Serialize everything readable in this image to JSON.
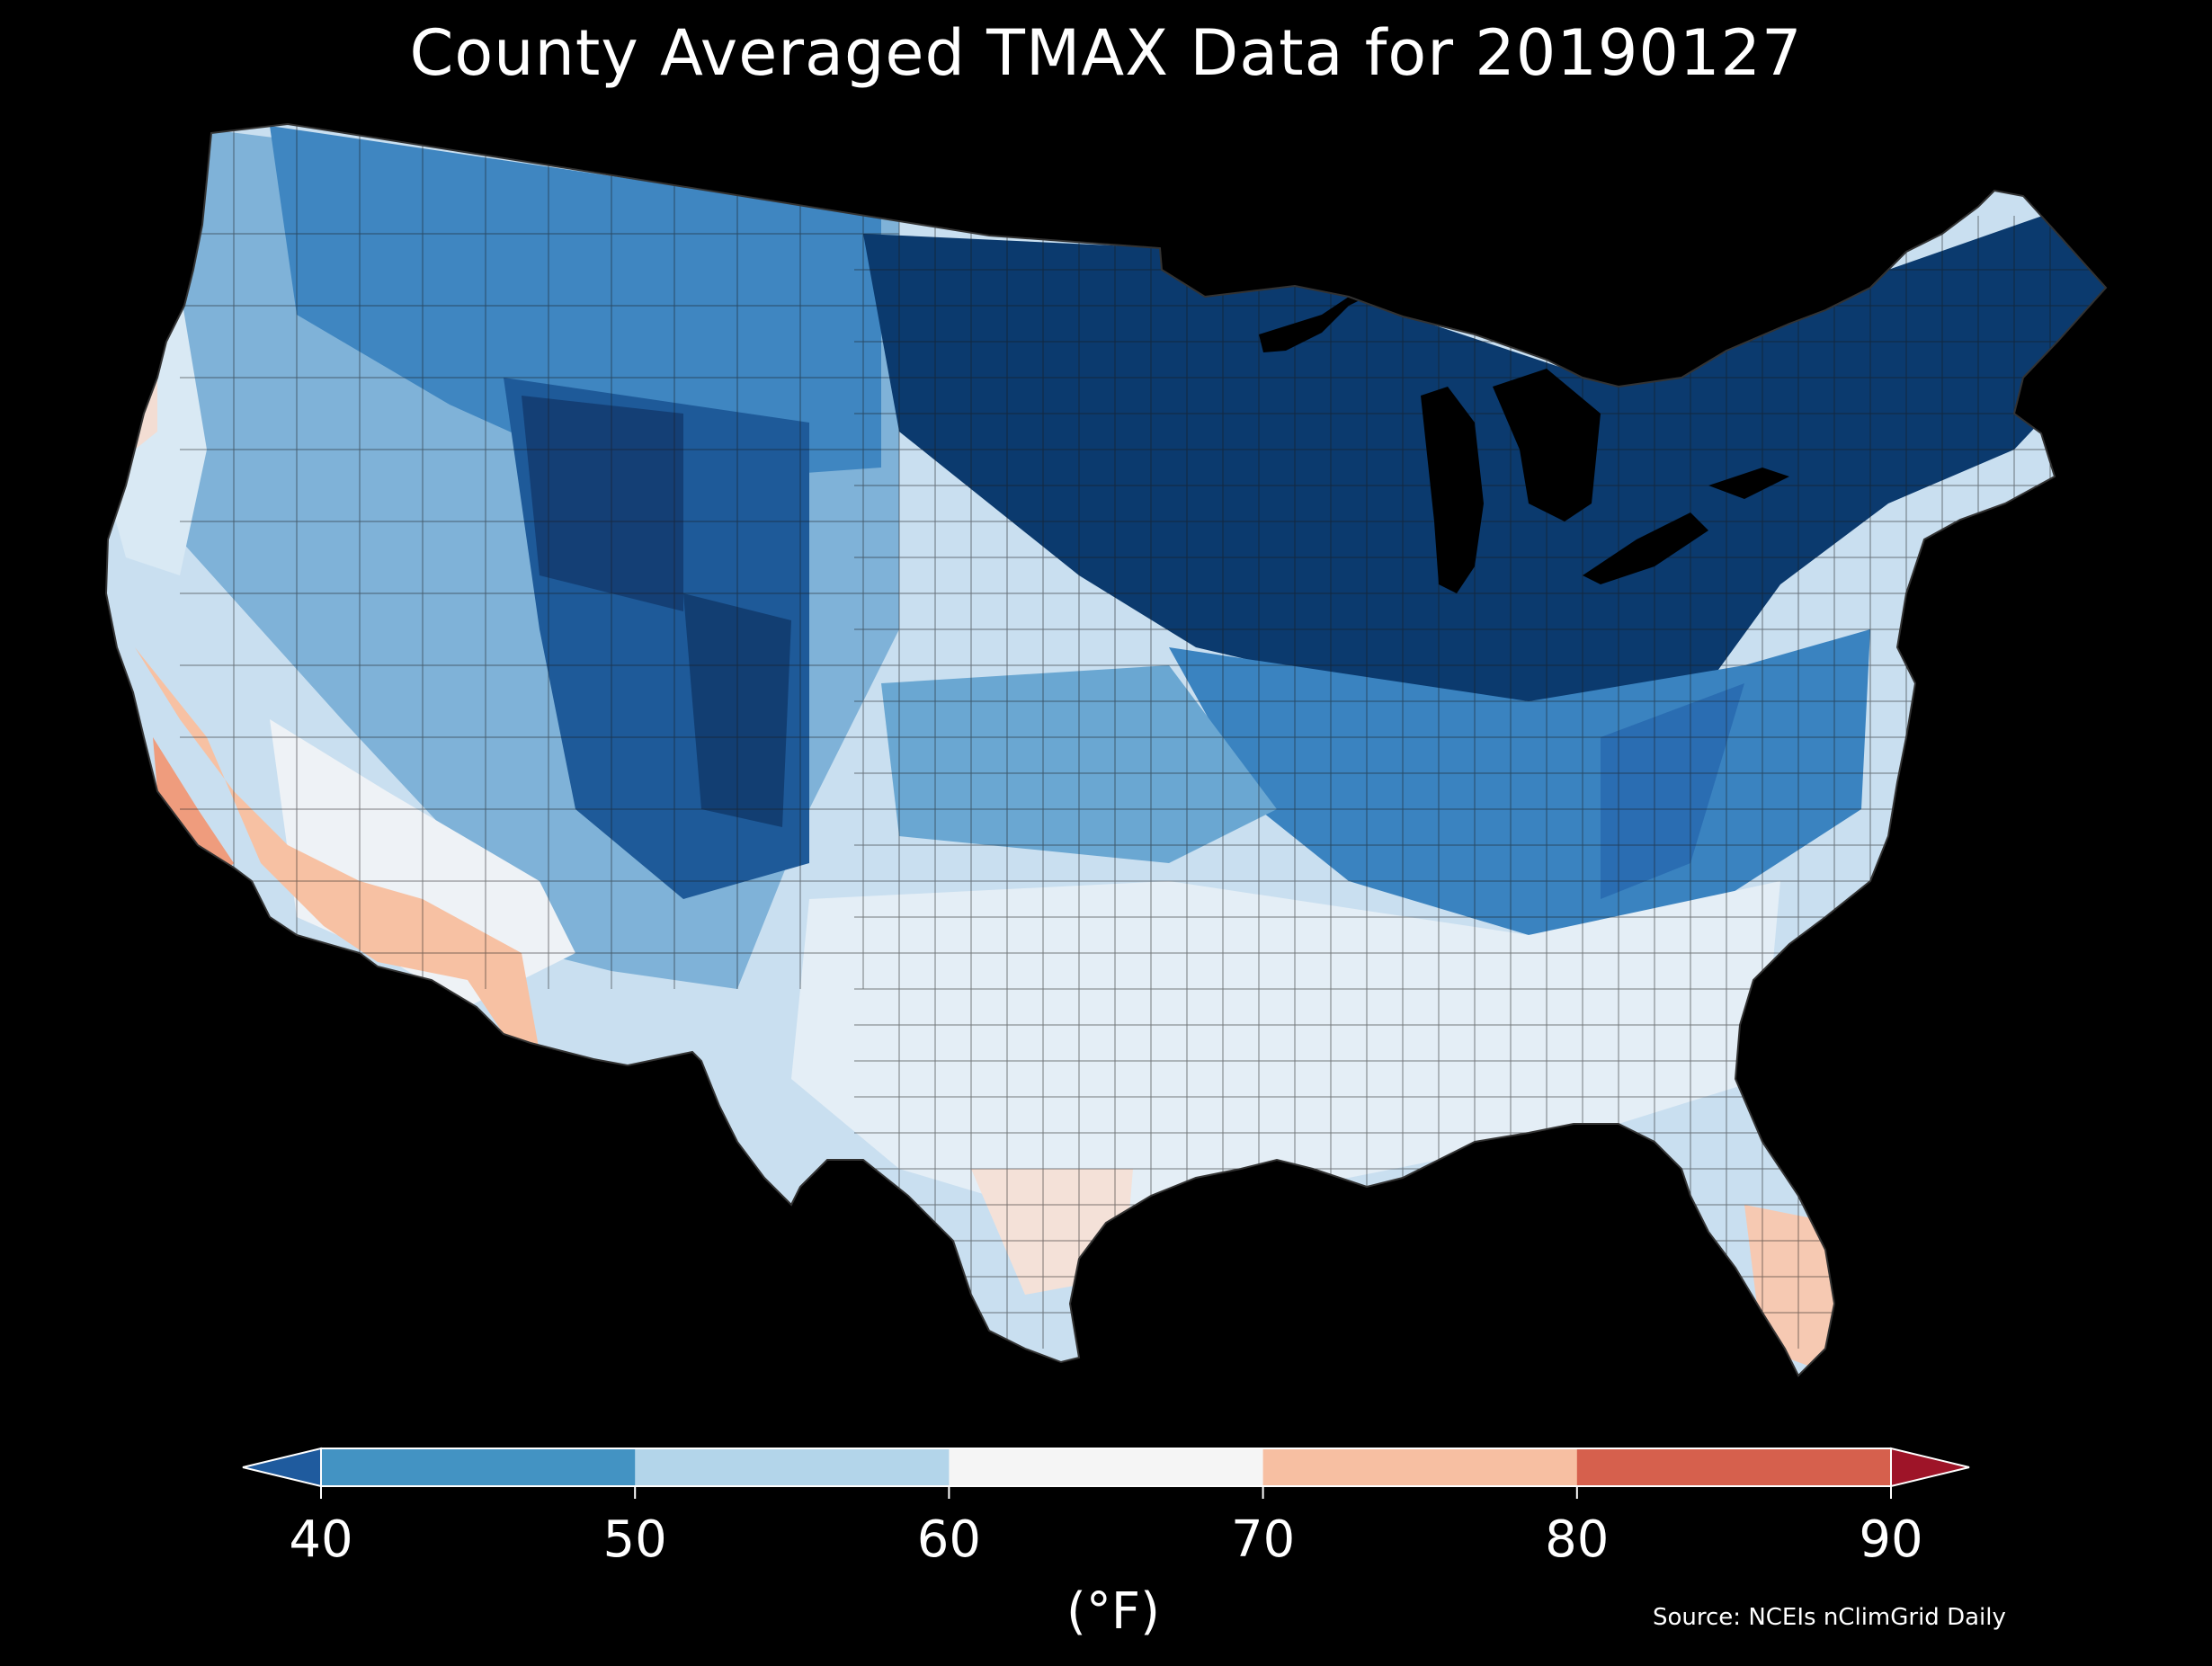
{
  "title": "County Averaged TMAX Data for 20190127",
  "source": "Source: NCEIs nClimGrid Daily",
  "colorbar": {
    "unit_label": "(°F)",
    "ticks": [
      "40",
      "50",
      "60",
      "70",
      "80",
      "90"
    ],
    "bins": [
      {
        "range": "<40",
        "color": "#1f5b9e"
      },
      {
        "range": "40-50",
        "color": "#4393c3"
      },
      {
        "range": "50-60",
        "color": "#b3d5ea"
      },
      {
        "range": "60-70",
        "color": "#f5f5f5"
      },
      {
        "range": "70-80",
        "color": "#f7bfa2"
      },
      {
        "range": "80-90",
        "color": "#d6604d"
      },
      {
        "range": ">90",
        "color": "#9e1428"
      }
    ]
  },
  "map": {
    "region": "Contiguous United States counties",
    "variable": "TMAX",
    "date": "20190127",
    "background_color": "#000000",
    "county_border_color": "#1a1a1a",
    "regional_bins": [
      {
        "region": "northern-plains-great-lakes-northeast",
        "bin": "<40",
        "color": "#0b3a6e"
      },
      {
        "region": "central-rockies",
        "bin": "<40",
        "color": "#1d5794"
      },
      {
        "region": "northern-rockies-great-basin",
        "bin": "40-50",
        "color": "#4393c3"
      },
      {
        "region": "ohio-valley-mid-atlantic",
        "bin": "40-50",
        "color": "#3a84c0"
      },
      {
        "region": "southern-plains-southeast",
        "bin": "50-60",
        "color": "#c6dff0"
      },
      {
        "region": "gulf-coast-florida",
        "bin": "60-70",
        "color": "#eef3f8"
      },
      {
        "region": "southern-california-southwest",
        "bin": "70-80",
        "color": "#f7c4a6"
      },
      {
        "region": "south-texas",
        "bin": "60-70",
        "color": "#f6e4dc"
      },
      {
        "region": "south-florida",
        "bin": "70-80",
        "color": "#f7cbb5"
      }
    ]
  }
}
